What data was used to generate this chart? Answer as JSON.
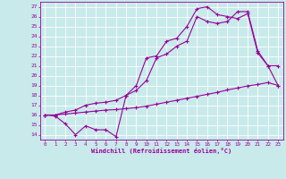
{
  "xlabel": "Windchill (Refroidissement éolien,°C)",
  "bg_color": "#c8eaea",
  "line_color": "#990099",
  "grid_color": "#ffffff",
  "xlim": [
    -0.5,
    23.5
  ],
  "ylim": [
    13.5,
    27.5
  ],
  "xticks": [
    0,
    1,
    2,
    3,
    4,
    5,
    6,
    7,
    8,
    9,
    10,
    11,
    12,
    13,
    14,
    15,
    16,
    17,
    18,
    19,
    20,
    21,
    22,
    23
  ],
  "yticks": [
    14,
    15,
    16,
    17,
    18,
    19,
    20,
    21,
    22,
    23,
    24,
    25,
    26,
    27
  ],
  "line1_x": [
    0,
    1,
    2,
    3,
    4,
    5,
    6,
    7,
    8,
    9,
    10,
    11,
    12,
    13,
    14,
    15,
    16,
    17,
    18,
    19,
    20,
    21,
    22,
    23
  ],
  "line1_y": [
    16.0,
    15.9,
    15.1,
    14.0,
    14.9,
    14.5,
    14.5,
    13.8,
    18.0,
    19.0,
    21.8,
    22.0,
    23.5,
    23.8,
    25.0,
    26.8,
    27.0,
    26.2,
    26.0,
    25.8,
    26.3,
    22.3,
    21.0,
    21.0
  ],
  "line2_x": [
    0,
    1,
    2,
    3,
    4,
    5,
    6,
    7,
    8,
    9,
    10,
    11,
    12,
    13,
    14,
    15,
    16,
    17,
    18,
    19,
    20,
    21,
    22,
    23
  ],
  "line2_y": [
    16.0,
    16.0,
    16.3,
    16.5,
    17.0,
    17.2,
    17.3,
    17.5,
    18.0,
    18.5,
    19.5,
    21.8,
    22.2,
    23.0,
    23.5,
    26.0,
    25.5,
    25.3,
    25.5,
    26.5,
    26.5,
    22.5,
    21.0,
    19.0
  ],
  "line3_x": [
    0,
    1,
    2,
    3,
    4,
    5,
    6,
    7,
    8,
    9,
    10,
    11,
    12,
    13,
    14,
    15,
    16,
    17,
    18,
    19,
    20,
    21,
    22,
    23
  ],
  "line3_y": [
    16.0,
    16.0,
    16.1,
    16.2,
    16.3,
    16.4,
    16.5,
    16.55,
    16.65,
    16.75,
    16.9,
    17.1,
    17.3,
    17.5,
    17.7,
    17.9,
    18.1,
    18.3,
    18.55,
    18.75,
    18.95,
    19.1,
    19.3,
    19.0
  ]
}
